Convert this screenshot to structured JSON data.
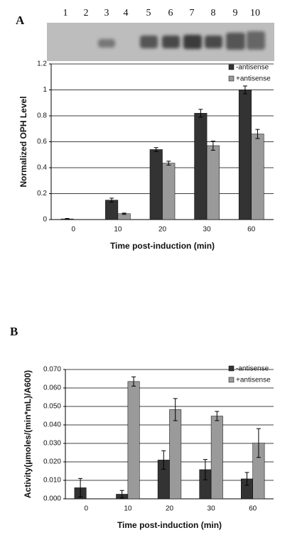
{
  "chart_data": [
    {
      "type": "bar",
      "panel": "A",
      "gel_lanes": [
        "1",
        "2",
        "3",
        "4",
        "5",
        "6",
        "7",
        "8",
        "9",
        "10"
      ],
      "ylabel": "Normalized OPH Level",
      "xlabel": "Time post-induction (min)",
      "categories": [
        "0",
        "10",
        "20",
        "30",
        "60"
      ],
      "series": [
        {
          "name": "-antisense",
          "color": "#333333",
          "values": [
            0.005,
            0.15,
            0.54,
            0.82,
            1.0
          ],
          "errors": [
            0.003,
            0.015,
            0.015,
            0.03,
            0.03
          ]
        },
        {
          "name": "+antisense",
          "color": "#9a9a9a",
          "values": [
            null,
            0.045,
            0.435,
            0.57,
            0.66
          ],
          "errors": [
            null,
            0.005,
            0.015,
            0.035,
            0.035
          ]
        }
      ],
      "ylim": [
        0,
        1.2
      ],
      "yticks": [
        0,
        0.2,
        0.4,
        0.6,
        0.8,
        1,
        1.2
      ],
      "grid": true,
      "legend": "top-right"
    },
    {
      "type": "bar",
      "panel": "B",
      "ylabel": "Activity(µmoles/(min*mL)/A600)",
      "xlabel": "Time post-induction (min)",
      "categories": [
        "0",
        "10",
        "20",
        "30",
        "60"
      ],
      "series": [
        {
          "name": "-antisense",
          "color": "#333333",
          "values": [
            0.006,
            0.0025,
            0.021,
            0.0158,
            0.0108
          ],
          "errors": [
            0.005,
            0.002,
            0.005,
            0.0055,
            0.0035
          ]
        },
        {
          "name": "+antisense",
          "color": "#9a9a9a",
          "values": [
            null,
            0.0635,
            0.0483,
            0.0448,
            0.0302
          ],
          "errors": [
            null,
            0.0025,
            0.006,
            0.0025,
            0.0078
          ]
        }
      ],
      "ylim": [
        0,
        0.07
      ],
      "yticks": [
        {
          "value": 0,
          "label": "0.000"
        },
        {
          "value": 0.01,
          "label": "0.010"
        },
        {
          "value": 0.02,
          "label": "0.020"
        },
        {
          "value": 0.03,
          "label": "0.030"
        },
        {
          "value": 0.04,
          "label": "0.040"
        },
        {
          "value": 0.05,
          "label": "0.050"
        },
        {
          "value": 0.06,
          "label": "0.060"
        },
        {
          "value": 0.07,
          "label": "0.070"
        }
      ],
      "grid": true,
      "legend": "top-right"
    }
  ]
}
